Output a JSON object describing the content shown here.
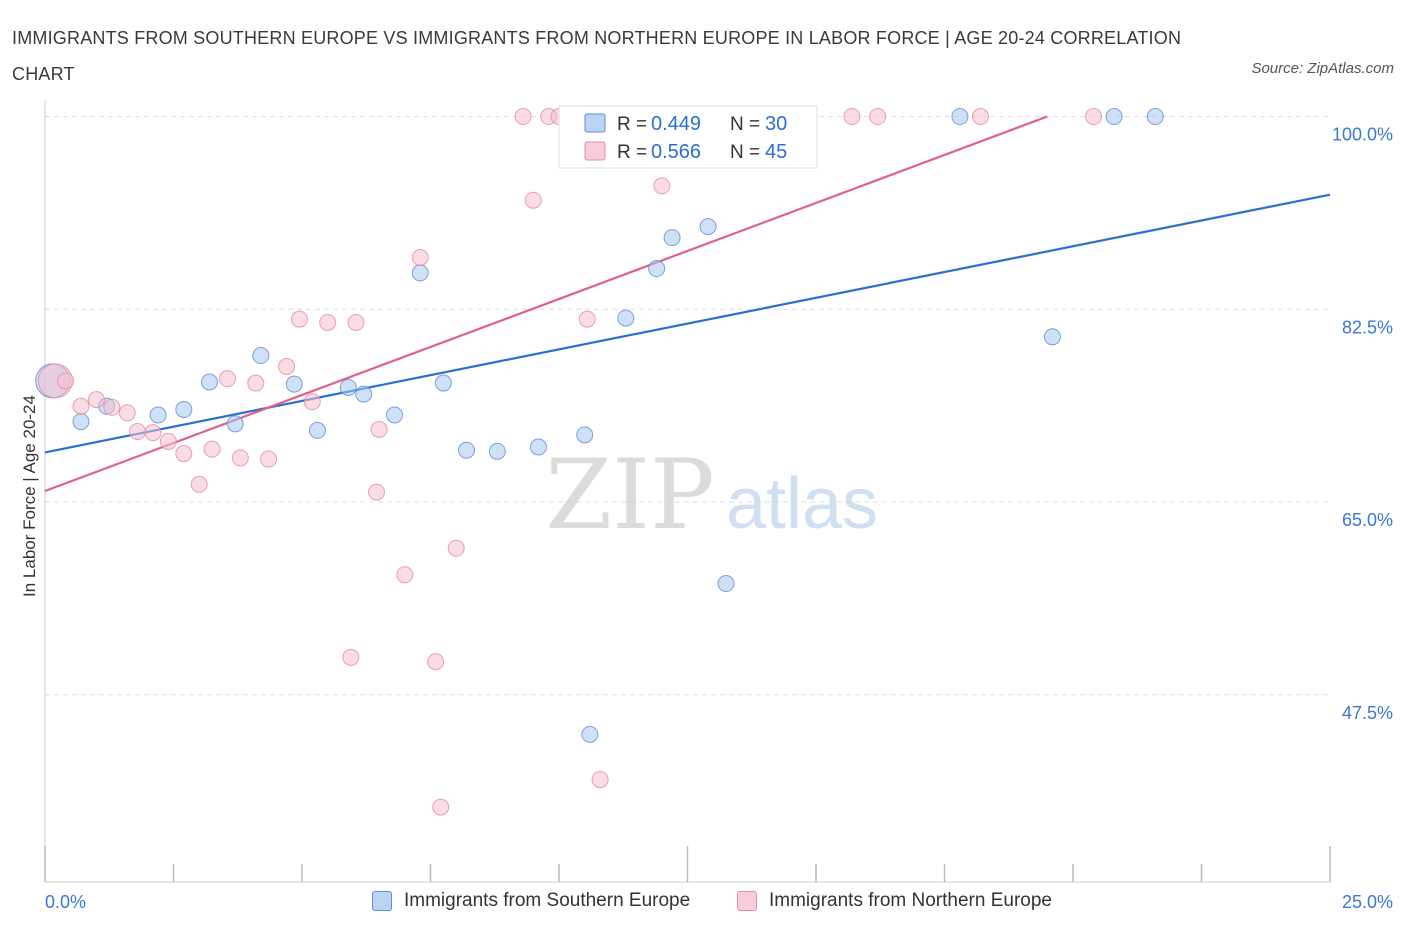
{
  "title": "IMMIGRANTS FROM SOUTHERN EUROPE VS IMMIGRANTS FROM NORTHERN EUROPE IN LABOR FORCE | AGE 20-24 CORRELATION CHART",
  "source": "Source: ZipAtlas.com",
  "watermark": {
    "zip": "ZIP",
    "atlas": "atlas"
  },
  "chart_data": {
    "type": "scatter",
    "title": "IMMIGRANTS FROM SOUTHERN EUROPE VS IMMIGRANTS FROM NORTHERN EUROPE IN LABOR FORCE | AGE 20-24 CORRELATION CHART",
    "xlabel": "",
    "ylabel": "In Labor Force | Age 20-24",
    "xlim": [
      0,
      25
    ],
    "ylim": [
      30.5,
      101.5
    ],
    "x_tick_labels": [
      {
        "value": 0,
        "label": "0.0%"
      },
      {
        "value": 25,
        "label": "25.0%"
      }
    ],
    "y_tick_labels": [
      {
        "value": 100,
        "label": "100.0%"
      },
      {
        "value": 82.5,
        "label": "82.5%"
      },
      {
        "value": 65,
        "label": "65.0%"
      },
      {
        "value": 47.5,
        "label": "47.5%"
      }
    ],
    "grid": true,
    "legend_position": "top-center",
    "series": [
      {
        "name": "Immigrants from Southern Europe",
        "color": "#a9c8f0",
        "stroke": "#5b8fd6",
        "line_color": "#2a6fd1",
        "r_label": "R =",
        "r_value": "0.449",
        "n_label": "N =",
        "n_value": "30",
        "trend": [
          [
            0,
            69.5
          ],
          [
            25,
            92.9
          ]
        ],
        "points": [
          {
            "x": 0.15,
            "y": 76.0,
            "big": true
          },
          {
            "x": 0.7,
            "y": 72.3
          },
          {
            "x": 1.2,
            "y": 73.7
          },
          {
            "x": 2.2,
            "y": 72.9
          },
          {
            "x": 2.7,
            "y": 73.4
          },
          {
            "x": 3.2,
            "y": 75.9
          },
          {
            "x": 3.7,
            "y": 72.1
          },
          {
            "x": 4.2,
            "y": 78.3
          },
          {
            "x": 4.85,
            "y": 75.7
          },
          {
            "x": 5.3,
            "y": 71.5
          },
          {
            "x": 5.9,
            "y": 75.4
          },
          {
            "x": 6.2,
            "y": 74.8
          },
          {
            "x": 6.8,
            "y": 72.9
          },
          {
            "x": 7.3,
            "y": 85.8
          },
          {
            "x": 7.75,
            "y": 75.8
          },
          {
            "x": 8.2,
            "y": 69.7
          },
          {
            "x": 8.8,
            "y": 69.6
          },
          {
            "x": 9.6,
            "y": 70.0
          },
          {
            "x": 10.5,
            "y": 71.1
          },
          {
            "x": 10.6,
            "y": 43.9
          },
          {
            "x": 11.3,
            "y": 81.7
          },
          {
            "x": 11.9,
            "y": 86.2
          },
          {
            "x": 12.2,
            "y": 89.0
          },
          {
            "x": 12.9,
            "y": 90.0
          },
          {
            "x": 13.25,
            "y": 57.6
          },
          {
            "x": 13.6,
            "y": 100.0
          },
          {
            "x": 17.8,
            "y": 100.0
          },
          {
            "x": 19.6,
            "y": 80.0
          },
          {
            "x": 20.8,
            "y": 100.0
          },
          {
            "x": 21.6,
            "y": 100.0
          }
        ]
      },
      {
        "name": "Immigrants from Northern Europe",
        "color": "#f6bfd0",
        "stroke": "#e58aa8",
        "line_color": "#e0608b",
        "r_label": "R =",
        "r_value": "0.566",
        "n_label": "N =",
        "n_value": "45",
        "trend": [
          [
            0,
            66.0
          ],
          [
            19.5,
            100.0
          ]
        ],
        "points": [
          {
            "x": 0.2,
            "y": 76.0,
            "big": true
          },
          {
            "x": 0.4,
            "y": 76.0
          },
          {
            "x": 0.7,
            "y": 73.7
          },
          {
            "x": 1.0,
            "y": 74.3
          },
          {
            "x": 1.3,
            "y": 73.6
          },
          {
            "x": 1.6,
            "y": 73.1
          },
          {
            "x": 1.8,
            "y": 71.4
          },
          {
            "x": 2.1,
            "y": 71.3
          },
          {
            "x": 2.4,
            "y": 70.5
          },
          {
            "x": 2.7,
            "y": 69.4
          },
          {
            "x": 3.0,
            "y": 66.6
          },
          {
            "x": 3.25,
            "y": 69.8
          },
          {
            "x": 3.55,
            "y": 76.2
          },
          {
            "x": 3.8,
            "y": 69.0
          },
          {
            "x": 4.1,
            "y": 75.8
          },
          {
            "x": 4.35,
            "y": 68.9
          },
          {
            "x": 4.7,
            "y": 77.3
          },
          {
            "x": 4.95,
            "y": 81.6
          },
          {
            "x": 5.2,
            "y": 74.1
          },
          {
            "x": 5.5,
            "y": 81.3
          },
          {
            "x": 5.95,
            "y": 50.9
          },
          {
            "x": 6.05,
            "y": 81.3
          },
          {
            "x": 6.45,
            "y": 65.9
          },
          {
            "x": 6.5,
            "y": 71.6
          },
          {
            "x": 7.0,
            "y": 58.4
          },
          {
            "x": 7.3,
            "y": 87.2
          },
          {
            "x": 7.6,
            "y": 50.5
          },
          {
            "x": 7.7,
            "y": 37.3
          },
          {
            "x": 8.0,
            "y": 60.8
          },
          {
            "x": 9.3,
            "y": 100.0
          },
          {
            "x": 9.5,
            "y": 92.4
          },
          {
            "x": 9.8,
            "y": 100.0
          },
          {
            "x": 10.0,
            "y": 100.0
          },
          {
            "x": 10.4,
            "y": 100.0
          },
          {
            "x": 10.55,
            "y": 81.6
          },
          {
            "x": 10.8,
            "y": 39.8
          },
          {
            "x": 10.9,
            "y": 100.0
          },
          {
            "x": 11.4,
            "y": 100.0
          },
          {
            "x": 11.8,
            "y": 100.0
          },
          {
            "x": 12.0,
            "y": 93.7
          },
          {
            "x": 14.3,
            "y": 100.0
          },
          {
            "x": 15.7,
            "y": 100.0
          },
          {
            "x": 16.2,
            "y": 100.0
          },
          {
            "x": 18.2,
            "y": 100.0
          },
          {
            "x": 20.4,
            "y": 100.0
          }
        ]
      }
    ]
  }
}
